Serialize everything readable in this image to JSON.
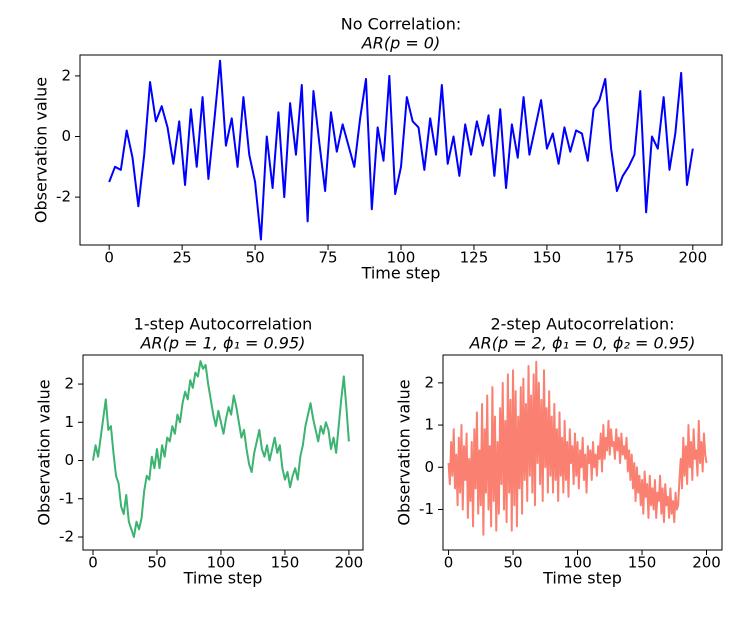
{
  "chart_data": [
    {
      "type": "line",
      "title": "No Correlation:",
      "subtitle": "AR(p = 0)",
      "xlabel": "Time step",
      "ylabel": "Observation value",
      "color": "#0000ff",
      "x": [
        0,
        2,
        4,
        6,
        8,
        10,
        12,
        14,
        16,
        18,
        20,
        22,
        24,
        26,
        28,
        30,
        32,
        34,
        36,
        38,
        40,
        42,
        44,
        46,
        48,
        50,
        52,
        54,
        56,
        58,
        60,
        62,
        64,
        66,
        68,
        70,
        72,
        74,
        76,
        78,
        80,
        82,
        84,
        86,
        88,
        90,
        92,
        94,
        96,
        98,
        100,
        102,
        104,
        106,
        108,
        110,
        112,
        114,
        116,
        118,
        120,
        122,
        124,
        126,
        128,
        130,
        132,
        134,
        136,
        138,
        140,
        142,
        144,
        146,
        148,
        150,
        152,
        154,
        156,
        158,
        160,
        162,
        164,
        166,
        168,
        170,
        172,
        174,
        176,
        178,
        180,
        182,
        184,
        186,
        188,
        190,
        192,
        194,
        196,
        198,
        200
      ],
      "values": [
        -1.5,
        -1.0,
        -1.1,
        0.2,
        -0.7,
        -2.3,
        -0.6,
        1.8,
        0.5,
        1.0,
        0.3,
        -0.9,
        0.5,
        -1.6,
        0.9,
        -1.0,
        1.3,
        -1.4,
        0.5,
        2.5,
        -0.3,
        0.6,
        -1.0,
        1.3,
        -0.6,
        -1.5,
        -3.4,
        0.0,
        -1.7,
        0.8,
        -2.0,
        1.1,
        -0.6,
        1.7,
        -2.8,
        1.5,
        -0.2,
        -1.8,
        0.8,
        -0.5,
        0.4,
        -0.3,
        -1.0,
        0.6,
        1.9,
        -2.4,
        0.3,
        -0.8,
        2.0,
        -1.9,
        -1.0,
        1.3,
        0.5,
        0.3,
        -1.1,
        0.6,
        -0.6,
        1.7,
        -0.9,
        0.0,
        -1.3,
        0.4,
        -0.6,
        0.5,
        -0.3,
        0.7,
        -1.3,
        0.9,
        -1.7,
        0.4,
        -0.7,
        1.3,
        -0.6,
        0.3,
        1.2,
        -0.4,
        0.1,
        -0.9,
        0.3,
        -0.5,
        0.2,
        0.1,
        -0.8,
        0.9,
        1.2,
        1.9,
        -0.4,
        -1.8,
        -1.3,
        -1.0,
        -0.6,
        1.5,
        -2.5,
        0.0,
        -0.4,
        1.3,
        -1.1,
        0.1,
        2.1,
        -1.6,
        -0.4
      ],
      "xlim": [
        -10,
        210
      ],
      "ylim": [
        -3.58,
        2.69
      ],
      "xticks": [
        0,
        25,
        50,
        75,
        100,
        125,
        150,
        175,
        200
      ],
      "yticks": [
        -2,
        0,
        2
      ]
    },
    {
      "type": "line",
      "title": "1-step Autocorrelation",
      "subtitle": "AR(p = 1, ϕ₁ = 0.95)",
      "xlabel": "Time step",
      "ylabel": "Observation value",
      "color": "#3cb371",
      "x": [
        0,
        2,
        4,
        6,
        8,
        10,
        12,
        14,
        16,
        18,
        20,
        22,
        24,
        26,
        28,
        30,
        32,
        34,
        36,
        38,
        40,
        42,
        44,
        46,
        48,
        50,
        52,
        54,
        56,
        58,
        60,
        62,
        64,
        66,
        68,
        70,
        72,
        74,
        76,
        78,
        80,
        82,
        84,
        86,
        88,
        90,
        92,
        94,
        96,
        98,
        100,
        102,
        104,
        106,
        108,
        110,
        112,
        114,
        116,
        118,
        120,
        122,
        124,
        126,
        128,
        130,
        132,
        134,
        136,
        138,
        140,
        142,
        144,
        146,
        148,
        150,
        152,
        154,
        156,
        158,
        160,
        162,
        164,
        166,
        168,
        170,
        172,
        174,
        176,
        178,
        180,
        182,
        184,
        186,
        188,
        190,
        192,
        194,
        196,
        198,
        200
      ],
      "values": [
        0.0,
        0.4,
        0.1,
        0.6,
        1.1,
        1.6,
        0.8,
        0.9,
        0.2,
        -0.4,
        -0.6,
        -1.2,
        -1.4,
        -0.9,
        -1.6,
        -1.8,
        -2.0,
        -1.6,
        -1.8,
        -1.5,
        -0.8,
        -0.4,
        -0.5,
        0.1,
        -0.2,
        0.3,
        -0.2,
        0.4,
        0.1,
        0.6,
        0.5,
        0.9,
        0.7,
        1.2,
        1.0,
        1.5,
        1.8,
        1.6,
        2.1,
        1.9,
        2.3,
        2.2,
        2.6,
        2.4,
        2.5,
        2.0,
        1.6,
        1.2,
        0.9,
        1.3,
        1.0,
        0.7,
        1.1,
        1.4,
        1.2,
        1.7,
        1.4,
        1.0,
        0.6,
        0.8,
        0.3,
        -0.1,
        -0.3,
        0.2,
        0.5,
        0.8,
        0.3,
        0.1,
        0.4,
        0.0,
        0.3,
        0.6,
        0.2,
        0.4,
        -0.2,
        -0.5,
        -0.3,
        -0.7,
        -0.4,
        -0.2,
        -0.5,
        0.1,
        0.4,
        0.9,
        1.2,
        1.5,
        1.1,
        0.8,
        0.5,
        0.9,
        0.7,
        1.0,
        0.8,
        0.3,
        0.6,
        0.2,
        0.9,
        1.6,
        2.2,
        1.4,
        0.5
      ],
      "xlim": [
        -7.8,
        211
      ],
      "ylim": [
        -2.34,
        2.76
      ],
      "xticks": [
        0,
        50,
        100,
        150,
        200
      ],
      "yticks": [
        -2,
        -1,
        0,
        1,
        2
      ]
    },
    {
      "type": "line",
      "title": "2-step Autocorrelation:",
      "subtitle": "AR(p = 2, ϕ₁ = 0, ϕ₂ = 0.95)",
      "xlabel": "Time step",
      "ylabel": "Observation value",
      "color": "#fa8072",
      "x": [
        0,
        1,
        2,
        3,
        4,
        5,
        6,
        7,
        8,
        9,
        10,
        11,
        12,
        13,
        14,
        15,
        16,
        17,
        18,
        19,
        20,
        21,
        22,
        23,
        24,
        25,
        26,
        27,
        28,
        29,
        30,
        31,
        32,
        33,
        34,
        35,
        36,
        37,
        38,
        39,
        40,
        41,
        42,
        43,
        44,
        45,
        46,
        47,
        48,
        49,
        50,
        51,
        52,
        53,
        54,
        55,
        56,
        57,
        58,
        59,
        60,
        61,
        62,
        63,
        64,
        65,
        66,
        67,
        68,
        69,
        70,
        71,
        72,
        73,
        74,
        75,
        76,
        77,
        78,
        79,
        80,
        81,
        82,
        83,
        84,
        85,
        86,
        87,
        88,
        89,
        90,
        91,
        92,
        93,
        94,
        95,
        96,
        97,
        98,
        99,
        100,
        101,
        102,
        103,
        104,
        105,
        106,
        107,
        108,
        109,
        110,
        111,
        112,
        113,
        114,
        115,
        116,
        117,
        118,
        119,
        120,
        121,
        122,
        123,
        124,
        125,
        126,
        127,
        128,
        129,
        130,
        131,
        132,
        133,
        134,
        135,
        136,
        137,
        138,
        139,
        140,
        141,
        142,
        143,
        144,
        145,
        146,
        147,
        148,
        149,
        150,
        151,
        152,
        153,
        154,
        155,
        156,
        157,
        158,
        159,
        160,
        161,
        162,
        163,
        164,
        165,
        166,
        167,
        168,
        169,
        170,
        171,
        172,
        173,
        174,
        175,
        176,
        177,
        178,
        179,
        180,
        181,
        182,
        183,
        184,
        185,
        186,
        187,
        188,
        189,
        190,
        191,
        192,
        193,
        194,
        195,
        196,
        197,
        198,
        199,
        200
      ],
      "values": [
        0.1,
        -0.4,
        0.6,
        -0.2,
        0.9,
        -0.5,
        0.3,
        -0.9,
        0.7,
        -0.6,
        1.0,
        -1.0,
        0.5,
        -0.3,
        0.8,
        -1.2,
        0.2,
        -0.8,
        0.6,
        -1.4,
        0.9,
        -0.5,
        1.3,
        -1.1,
        0.4,
        -0.9,
        1.5,
        -1.6,
        0.9,
        -0.6,
        1.7,
        -1.0,
        0.5,
        -1.4,
        1.9,
        -0.8,
        1.2,
        -1.5,
        0.6,
        -1.1,
        1.4,
        -0.4,
        2.0,
        -1.0,
        1.1,
        -1.3,
        2.2,
        -0.6,
        1.6,
        -1.5,
        2.3,
        -0.9,
        1.8,
        -1.4,
        1.2,
        -0.5,
        1.9,
        -1.1,
        2.1,
        -0.3,
        1.5,
        -0.8,
        2.4,
        -0.2,
        1.7,
        -0.6,
        2.2,
        -0.9,
        2.5,
        0.1,
        2.0,
        -0.4,
        1.6,
        -0.8,
        2.3,
        0.0,
        1.4,
        -0.6,
        1.8,
        -0.2,
        1.2,
        -0.6,
        1.5,
        -0.3,
        0.9,
        -0.8,
        1.3,
        -0.2,
        0.7,
        -0.6,
        1.1,
        -0.3,
        0.6,
        -0.7,
        0.9,
        0.1,
        0.5,
        -0.4,
        0.8,
        -0.2,
        0.6,
        -0.5,
        0.4,
        0.0,
        0.7,
        -0.3,
        0.3,
        -0.6,
        0.5,
        0.1,
        0.4,
        -0.3,
        0.6,
        0.0,
        0.3,
        -0.2,
        0.5,
        0.2,
        0.8,
        -0.1,
        1.0,
        0.2,
        0.7,
        0.4,
        1.1,
        0.3,
        0.9,
        0.5,
        0.6,
        0.2,
        0.9,
        0.4,
        0.7,
        0.1,
        0.8,
        0.3,
        0.5,
        0.2,
        0.7,
        -0.1,
        0.4,
        -0.3,
        0.3,
        -0.5,
        0.1,
        -0.8,
        0.0,
        -0.6,
        -0.2,
        -0.9,
        -0.3,
        -1.1,
        -0.1,
        -0.7,
        -0.4,
        -1.2,
        -0.2,
        -0.9,
        -0.5,
        -1.0,
        -0.3,
        -1.2,
        -0.6,
        -0.8,
        -0.2,
        -1.1,
        -0.5,
        -1.3,
        -0.4,
        -0.9,
        -0.7,
        -1.2,
        -0.5,
        -1.1,
        -0.8,
        -1.3,
        -0.6,
        -1.0,
        -0.9,
        -0.3,
        0.2,
        -0.5,
        0.7,
        -0.2,
        0.5,
        -0.4,
        1.0,
        0.0,
        0.6,
        -0.3,
        0.9,
        0.2,
        0.4,
        -0.2,
        1.1,
        0.1,
        0.6,
        -0.1,
        0.8,
        0.3,
        0.1
      ],
      "xlim": [
        -4.3,
        212
      ],
      "ylim": [
        -1.96,
        2.66
      ],
      "xticks": [
        0,
        50,
        100,
        150,
        200
      ],
      "yticks": [
        -1,
        0,
        1,
        2
      ]
    }
  ]
}
